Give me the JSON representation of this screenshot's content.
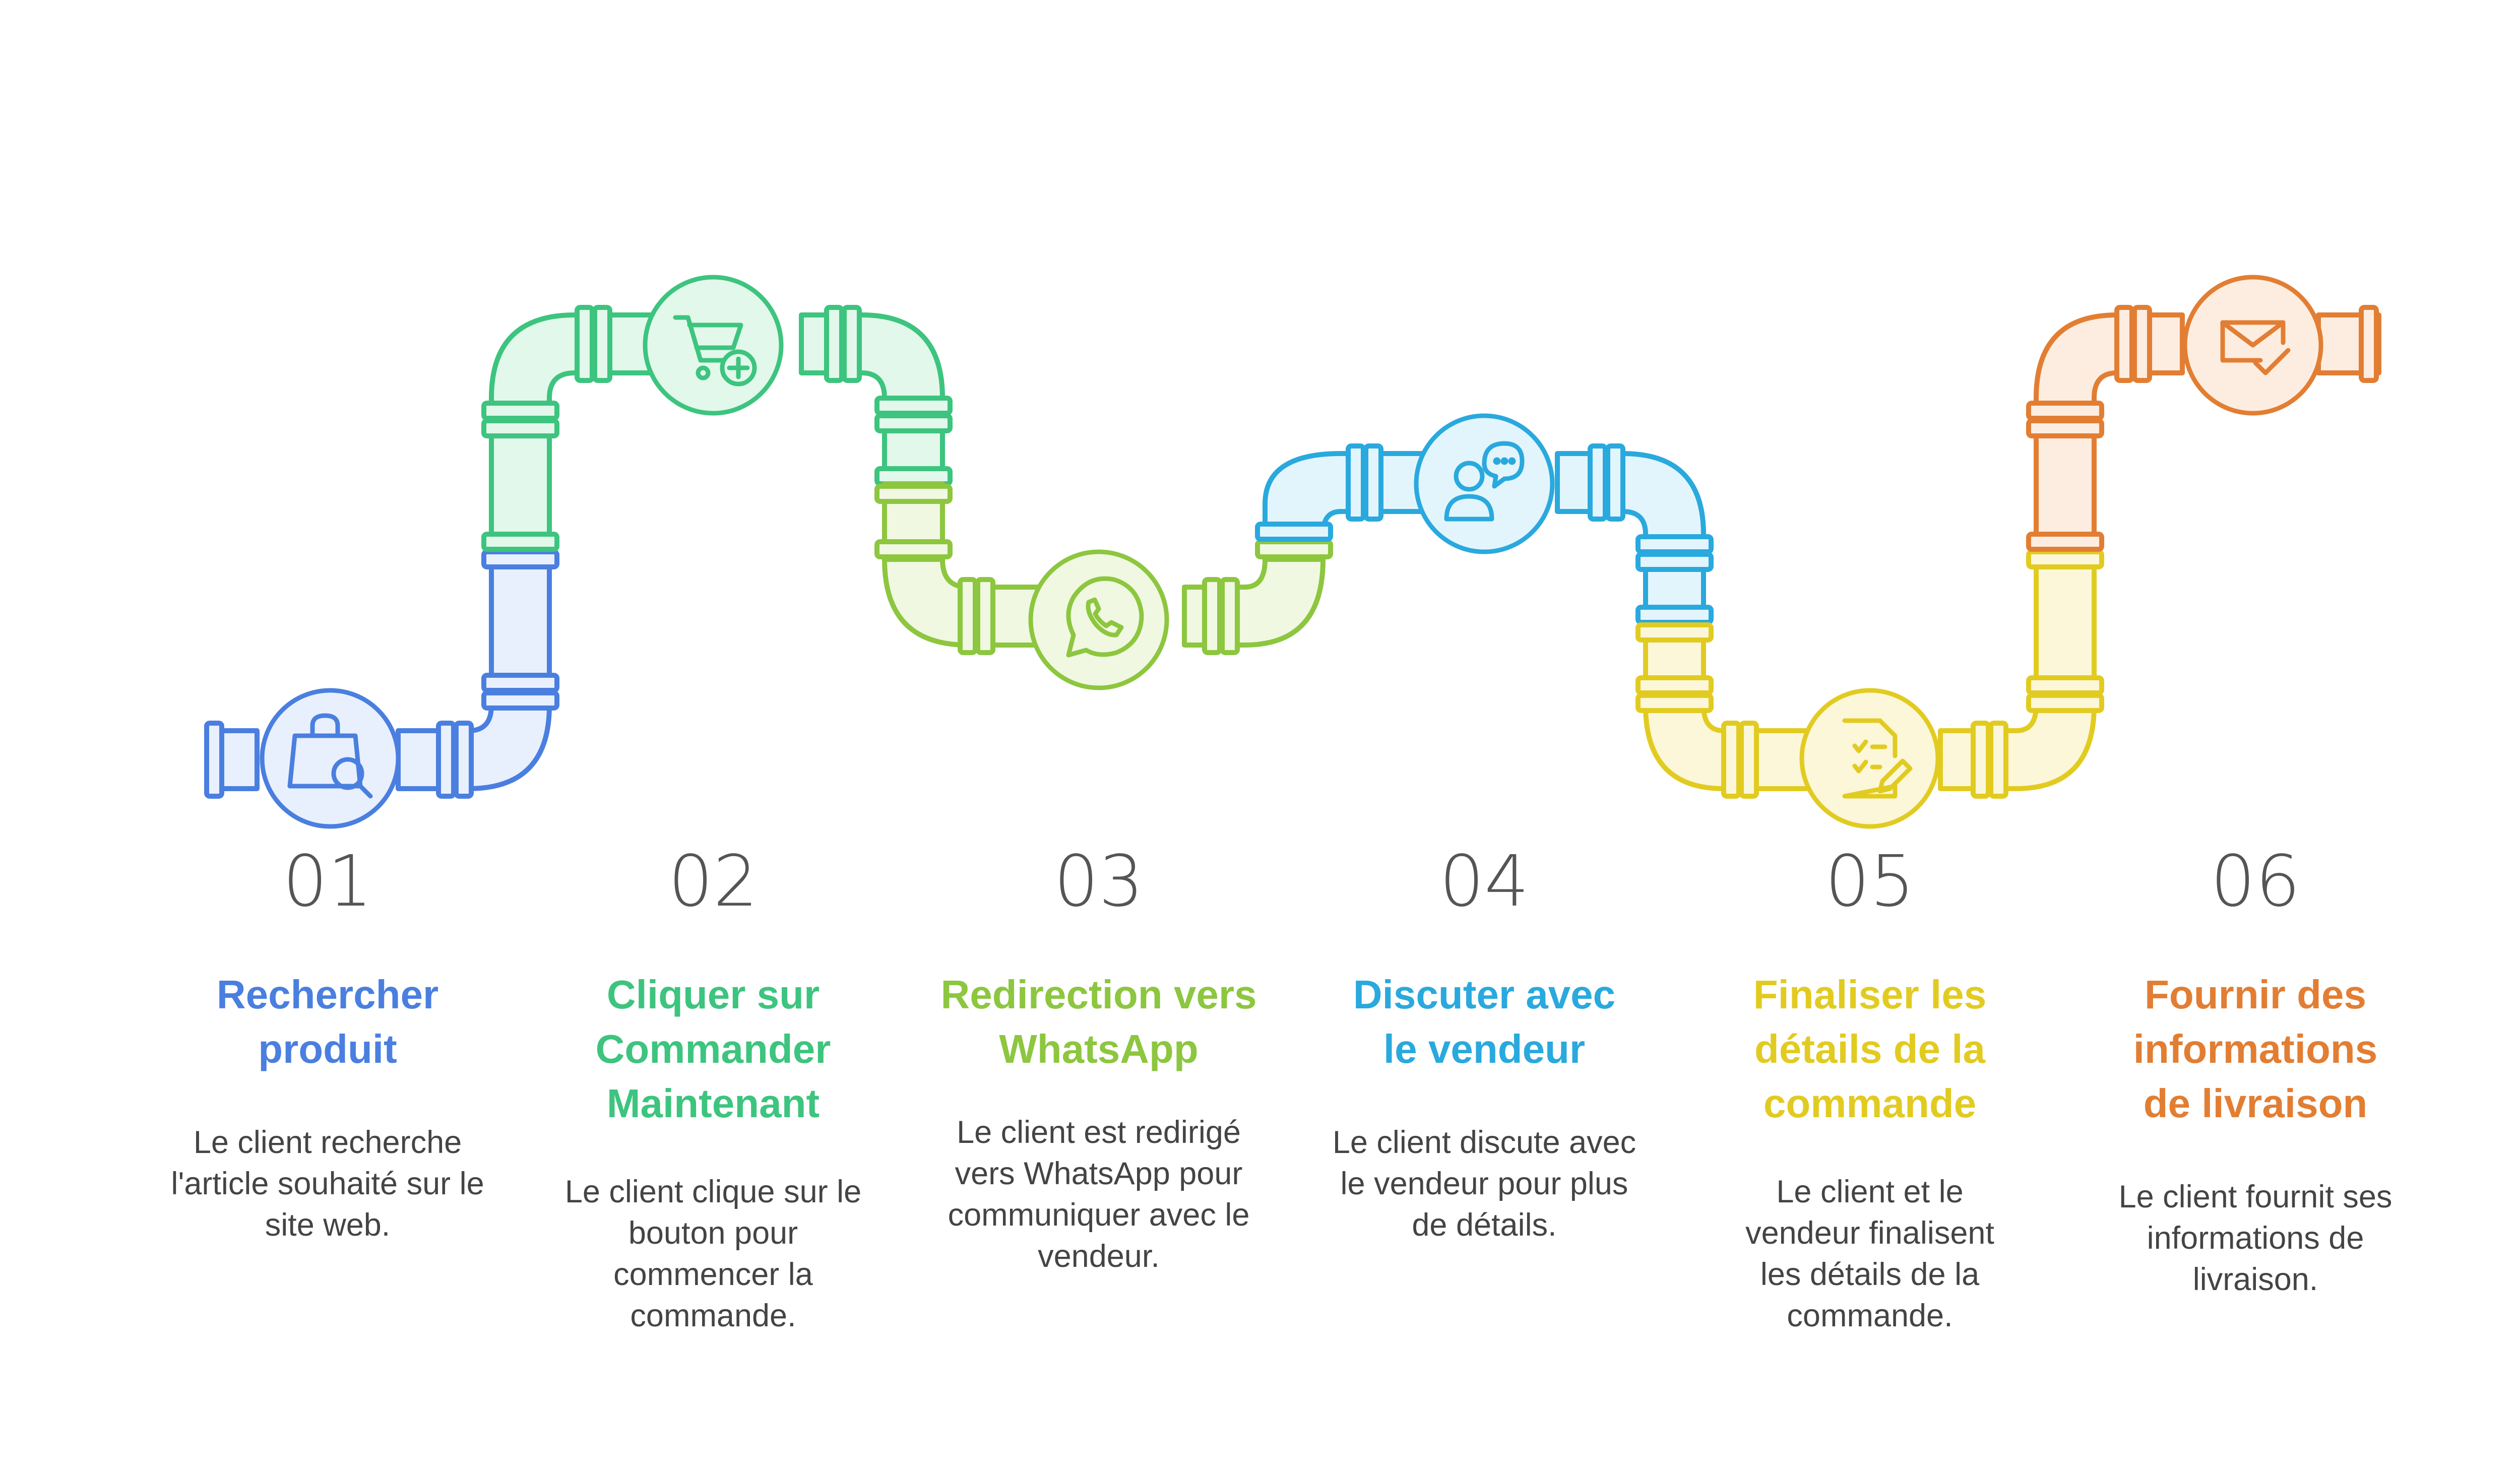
{
  "steps": [
    {
      "number": "01",
      "title": "Rechercher produit",
      "description": "Le client recherche l'article souhaité sur le site web.",
      "color": "#4A7FE0",
      "fill": "#E8F0FE",
      "icon": "shopping-bag-search-icon"
    },
    {
      "number": "02",
      "title": "Cliquer sur Commander Maintenant",
      "description": "Le client clique sur le bouton pour commencer la commande.",
      "color": "#3DC47E",
      "fill": "#E2F8EB",
      "icon": "cart-add-icon"
    },
    {
      "number": "03",
      "title": "Redirection vers WhatsApp",
      "description": "Le client est redirigé vers WhatsApp pour communiquer avec le vendeur.",
      "color": "#8DC63F",
      "fill": "#F0F8E2",
      "icon": "whatsapp-icon"
    },
    {
      "number": "04",
      "title": "Discuter avec le vendeur",
      "description": "Le client discute avec le vendeur pour plus de détails.",
      "color": "#29A9DD",
      "fill": "#E3F5FC",
      "icon": "chat-person-icon"
    },
    {
      "number": "05",
      "title": "Finaliser les détails de la commande",
      "description": "Le client et le vendeur finalisent les détails de la commande.",
      "color": "#E2CB21",
      "fill": "#FCF7D8",
      "icon": "checklist-edit-icon"
    },
    {
      "number": "06",
      "title": "Fournir des informations de livraison",
      "description": "Le client fournit ses informations de livraison.",
      "color": "#E27E33",
      "fill": "#FDEDE0",
      "icon": "envelope-check-icon"
    }
  ]
}
